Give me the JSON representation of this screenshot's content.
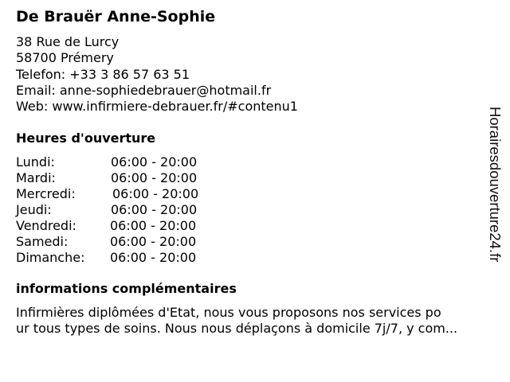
{
  "title": "De Brauër Anne-Sophie",
  "address": {
    "street": "38 Rue de Lurcy",
    "city": "58700 Prémery",
    "phone": "Telefon: +33 3 86 57 63 51",
    "email": "Email: anne-sophiedebrauer@hotmail.fr",
    "web": "Web: www.infirmiere-debrauer.fr/#contenu1"
  },
  "hours_heading": "Heures d'ouverture",
  "hours": [
    {
      "day": "Lundi:",
      "time": "06:00 - 20:00"
    },
    {
      "day": "Mardi:",
      "time": "06:00 - 20:00"
    },
    {
      "day": "Mercredi:",
      "time": "06:00 - 20:00"
    },
    {
      "day": "Jeudi:",
      "time": "06:00 - 20:00"
    },
    {
      "day": "Vendredi:",
      "time": "06:00 - 20:00"
    },
    {
      "day": "Samedi:",
      "time": "06:00 - 20:00"
    },
    {
      "day": "Dimanche:",
      "time": "06:00 - 20:00"
    }
  ],
  "info_heading": "informations complémentaires",
  "info_lines": [
    "Infirmières diplômées d'Etat, nous vous proposons nos services po",
    "ur tous types de soins. Nous nous déplaçons à domicile 7j/7, y com..."
  ],
  "watermark": "Horairesdouverture24.fr"
}
